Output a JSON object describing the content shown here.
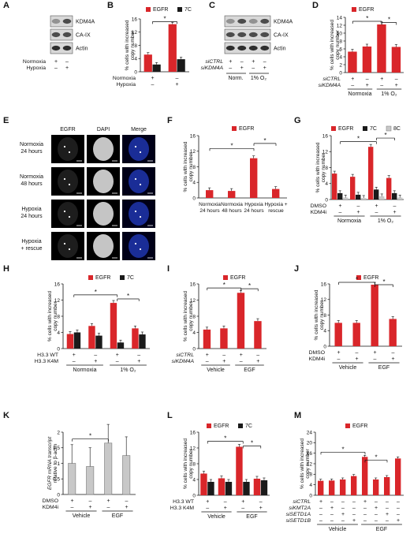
{
  "colors": {
    "red": "#d9262a",
    "black": "#1a1a1a",
    "gray": "#c8c8c8",
    "blue_cell": "#1b2f9e"
  },
  "ylabel_copy": "% cells with increased copy number",
  "sig": "*",
  "panels": {
    "A": {
      "letter": "A",
      "bands": [
        "KDM4A",
        "CA-IX",
        "Actin"
      ],
      "conds": [
        "Normoxia",
        "Hypoxia"
      ],
      "marks": [
        [
          "+",
          "–"
        ],
        [
          "–",
          "+"
        ]
      ]
    },
    "B": {
      "letter": "B"
    },
    "C": {
      "letter": "C",
      "bands": [
        "KDM4A",
        "CA-IX",
        "Actin"
      ],
      "rows": [
        "siCTRL",
        "siKDM4A"
      ],
      "marks": [
        [
          "+",
          "–",
          "+",
          "–"
        ],
        [
          "–",
          "+",
          "–",
          "+"
        ]
      ],
      "groups": [
        "Norm.",
        "1% O₂"
      ]
    },
    "D": {
      "letter": "D"
    },
    "E": {
      "letter": "E",
      "cols": [
        "EGFR",
        "DAPI",
        "Merge"
      ],
      "rows": [
        [
          "Normoxia",
          "24 hours"
        ],
        [
          "Normoxia",
          "48 hours"
        ],
        [
          "Hypoxia",
          "24 hours"
        ],
        [
          "Hypoxia",
          "+ rescue"
        ]
      ]
    },
    "F": {
      "letter": "F"
    },
    "G": {
      "letter": "G"
    },
    "H": {
      "letter": "H"
    },
    "I": {
      "letter": "I"
    },
    "J": {
      "letter": "J"
    },
    "K": {
      "letter": "K",
      "ylabel": [
        "EGFR mRNA transcript",
        "relative to β-actin"
      ]
    },
    "L": {
      "letter": "L"
    },
    "M": {
      "letter": "M"
    }
  },
  "chart_data": [
    {
      "id": "B",
      "type": "bar",
      "ylim": [
        0,
        16
      ],
      "ticks": [
        0,
        4,
        8,
        12,
        16
      ],
      "series": [
        {
          "name": "EGFR",
          "values": [
            5.2,
            14.4
          ]
        },
        {
          "name": "7C",
          "values": [
            2.2,
            3.8
          ]
        }
      ],
      "rows": [
        {
          "label": "Normoxia",
          "marks": [
            "+",
            "–"
          ]
        },
        {
          "label": "Hypoxia",
          "marks": [
            "–",
            "+"
          ]
        }
      ]
    },
    {
      "id": "D",
      "type": "bar",
      "ylim": [
        0,
        14
      ],
      "ticks": [
        0,
        2,
        4,
        6,
        8,
        10,
        12,
        14
      ],
      "series": [
        {
          "name": "EGFR",
          "values": [
            5.3,
            6.6,
            12.2,
            6.5
          ]
        }
      ],
      "rows": [
        {
          "label": "siCTRL",
          "marks": [
            "+",
            "–",
            "+",
            "–"
          ]
        },
        {
          "label": "siKDM4A",
          "marks": [
            "–",
            "+",
            "–",
            "+"
          ]
        }
      ],
      "groups": [
        "Normoxia",
        "1% O₂"
      ]
    },
    {
      "id": "F",
      "type": "bar",
      "ylim": [
        0,
        16
      ],
      "ticks": [
        0,
        4,
        8,
        12,
        16
      ],
      "series": [
        {
          "name": "EGFR",
          "values": [
            2.0,
            1.8,
            10.2,
            2.3
          ]
        }
      ],
      "categories": [
        [
          "Normoxia",
          "24 hours"
        ],
        [
          "Normoxia",
          "48 hours"
        ],
        [
          "Hypoxia",
          "24 hours"
        ],
        [
          "Hypoxia +",
          "rescue"
        ]
      ]
    },
    {
      "id": "G",
      "type": "bar",
      "ylim": [
        0,
        16
      ],
      "ticks": [
        0,
        4,
        8,
        12,
        16
      ],
      "series": [
        {
          "name": "EGFR",
          "values": [
            6.5,
            5.7,
            13.2,
            5.4
          ]
        },
        {
          "name": "7C",
          "values": [
            1.6,
            1.2,
            2.5,
            1.6
          ]
        },
        {
          "name": "8C",
          "values": [
            0.5,
            0.4,
            0.8,
            0.5
          ]
        }
      ],
      "rows": [
        {
          "label": "DMSO",
          "marks": [
            "+",
            "–",
            "+",
            "–"
          ]
        },
        {
          "label": "KDM4i",
          "marks": [
            "–",
            "+",
            "–",
            "+"
          ]
        }
      ],
      "groups": [
        "Normoxia",
        "1% O₂"
      ]
    },
    {
      "id": "H",
      "type": "bar",
      "ylim": [
        0,
        16
      ],
      "ticks": [
        0,
        4,
        8,
        12,
        16
      ],
      "series": [
        {
          "name": "EGFR",
          "values": [
            3.6,
            5.6,
            11.3,
            5.0
          ]
        },
        {
          "name": "7C",
          "values": [
            4.0,
            3.2,
            1.5,
            3.5
          ]
        }
      ],
      "rows": [
        {
          "label": "H3.3 WT",
          "marks": [
            "+",
            "–",
            "+",
            "–"
          ]
        },
        {
          "label": "H3.3 K4M",
          "marks": [
            "–",
            "+",
            "–",
            "+"
          ]
        }
      ],
      "groups": [
        "Normoxia",
        "1% O₂"
      ]
    },
    {
      "id": "I",
      "type": "bar",
      "ylim": [
        0,
        16
      ],
      "ticks": [
        0,
        4,
        8,
        12,
        16
      ],
      "series": [
        {
          "name": "EGFR",
          "values": [
            4.7,
            5.0,
            13.8,
            6.8
          ]
        }
      ],
      "rows": [
        {
          "label": "siCTRL",
          "marks": [
            "+",
            "–",
            "+",
            "–"
          ]
        },
        {
          "label": "siKDM4A",
          "marks": [
            "–",
            "+",
            "–",
            "+"
          ]
        }
      ],
      "groups": [
        "Vehicle",
        "EGF"
      ]
    },
    {
      "id": "J",
      "type": "bar",
      "ylim": [
        0,
        16
      ],
      "ticks": [
        0,
        4,
        8,
        12,
        16
      ],
      "series": [
        {
          "name": "EGFR",
          "values": [
            6.0,
            6.0,
            15.8,
            7.0
          ]
        }
      ],
      "rows": [
        {
          "label": "DMSO",
          "marks": [
            "+",
            "–",
            "+",
            "–"
          ]
        },
        {
          "label": "KDM4i",
          "marks": [
            "–",
            "+",
            "–",
            "+"
          ]
        }
      ],
      "groups": [
        "Vehicle",
        "EGF"
      ]
    },
    {
      "id": "K",
      "type": "bar",
      "ylim": [
        0,
        2
      ],
      "ticks": [
        0,
        0.5,
        1,
        1.5,
        2
      ],
      "series": [
        {
          "name": "",
          "values": [
            1.0,
            0.9,
            1.65,
            1.25
          ]
        }
      ],
      "rows": [
        {
          "label": "DMSO",
          "marks": [
            "+",
            "–",
            "+",
            "–"
          ]
        },
        {
          "label": "KDM4i",
          "marks": [
            "–",
            "+",
            "–",
            "+"
          ]
        }
      ],
      "groups": [
        "Vehicle",
        "EGF"
      ]
    },
    {
      "id": "L",
      "type": "bar",
      "ylim": [
        0,
        16
      ],
      "ticks": [
        0,
        4,
        8,
        12,
        16
      ],
      "series": [
        {
          "name": "EGFR",
          "values": [
            5.5,
            4.3,
            12.3,
            4.2
          ]
        },
        {
          "name": "7C",
          "values": [
            3.4,
            3.4,
            3.4,
            3.8
          ]
        }
      ],
      "rows": [
        {
          "label": "H3.3 WT",
          "marks": [
            "+",
            "–",
            "+",
            "–"
          ]
        },
        {
          "label": "H3.3 K4M",
          "marks": [
            "–",
            "+",
            "–",
            "+"
          ]
        }
      ],
      "groups": [
        "Vehicle",
        "EGF"
      ]
    },
    {
      "id": "M",
      "type": "bar",
      "ylim": [
        0,
        24
      ],
      "ticks": [
        0,
        4,
        8,
        12,
        16,
        20,
        24
      ],
      "series": [
        {
          "name": "EGFR",
          "values": [
            5.5,
            5.6,
            6.0,
            7.3,
            14.6,
            6.0,
            6.9,
            14.0
          ]
        }
      ],
      "rows": [
        {
          "label": "siCTRL",
          "marks": [
            "+",
            "–",
            "–",
            "–",
            "+",
            "–",
            "–",
            "–"
          ]
        },
        {
          "label": "siKMT2A",
          "marks": [
            "–",
            "+",
            "–",
            "–",
            "–",
            "+",
            "–",
            "–"
          ]
        },
        {
          "label": "siSETD1A",
          "marks": [
            "–",
            "–",
            "+",
            "–",
            "–",
            "–",
            "+",
            "–"
          ]
        },
        {
          "label": "siSETD1B",
          "marks": [
            "–",
            "–",
            "–",
            "+",
            "–",
            "–",
            "–",
            "+"
          ]
        }
      ],
      "groups": [
        "Vehicle",
        "EGF"
      ]
    }
  ]
}
